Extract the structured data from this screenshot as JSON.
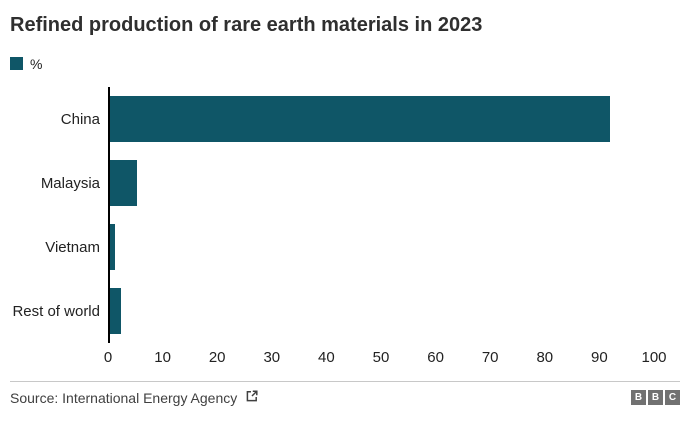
{
  "header": {
    "title": "Refined production of rare earth materials in 2023"
  },
  "legend": {
    "label": "%",
    "swatch_color": "#0f5667"
  },
  "chart_data": {
    "type": "bar",
    "orientation": "horizontal",
    "title": "Refined production of rare earth materials in 2023",
    "unit": "%",
    "categories": [
      "China",
      "Malaysia",
      "Vietnam",
      "Rest of world"
    ],
    "values": [
      92,
      5,
      1,
      2
    ],
    "xlim": [
      0,
      100
    ],
    "x_ticks": [
      0,
      10,
      20,
      30,
      40,
      50,
      60,
      70,
      80,
      90,
      100
    ],
    "xlabel": "",
    "ylabel": "",
    "grid": false,
    "legend_entries": [
      "%"
    ],
    "legend_position": "top-left",
    "bar_color": "#0f5667",
    "axis_line_color": "#000000"
  },
  "footer": {
    "source": "Source: International Energy Agency",
    "external_link_icon": "external-link",
    "logo_blocks": [
      "B",
      "B",
      "C"
    ]
  }
}
